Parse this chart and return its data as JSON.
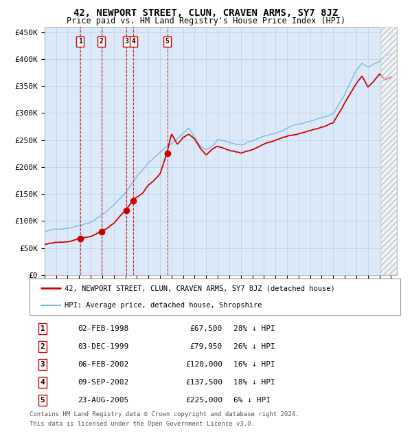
{
  "title": "42, NEWPORT STREET, CLUN, CRAVEN ARMS, SY7 8JZ",
  "subtitle": "Price paid vs. HM Land Registry's House Price Index (HPI)",
  "ylim": [
    0,
    460000
  ],
  "yticks": [
    0,
    50000,
    100000,
    150000,
    200000,
    250000,
    300000,
    350000,
    400000,
    450000
  ],
  "ytick_labels": [
    "£0",
    "£50K",
    "£100K",
    "£150K",
    "£200K",
    "£250K",
    "£300K",
    "£350K",
    "£400K",
    "£450K"
  ],
  "background_color": "#dce9f8",
  "hpi_color": "#7ab8e0",
  "price_color": "#cc0000",
  "vline_color": "#cc0000",
  "title_fontsize": 10,
  "subtitle_fontsize": 8.5,
  "legend_line1": "42, NEWPORT STREET, CLUN, CRAVEN ARMS, SY7 8JZ (detached house)",
  "legend_line2": "HPI: Average price, detached house, Shropshire",
  "sales": [
    {
      "num": 1,
      "date": "02-FEB-1998",
      "price": 67500,
      "year": 1998.09,
      "pct": "28%",
      "dir": "↓"
    },
    {
      "num": 2,
      "date": "03-DEC-1999",
      "price": 79950,
      "year": 1999.92,
      "pct": "26%",
      "dir": "↓"
    },
    {
      "num": 3,
      "date": "06-FEB-2002",
      "price": 120000,
      "year": 2002.1,
      "pct": "16%",
      "dir": "↓"
    },
    {
      "num": 4,
      "date": "09-SEP-2002",
      "price": 137500,
      "year": 2002.69,
      "pct": "18%",
      "dir": "↓"
    },
    {
      "num": 5,
      "date": "23-AUG-2005",
      "price": 225000,
      "year": 2005.64,
      "pct": "6%",
      "dir": "↓"
    }
  ],
  "footer1": "Contains HM Land Registry data © Crown copyright and database right 2024.",
  "footer2": "This data is licensed under the Open Government Licence v3.0.",
  "hpi_anchors_t": [
    1995.0,
    1996.0,
    1997.0,
    1998.0,
    1999.0,
    2000.0,
    2001.0,
    2002.0,
    2003.0,
    2004.0,
    2004.5,
    2005.5,
    2006.0,
    2007.0,
    2007.5,
    2008.0,
    2008.5,
    2009.0,
    2009.5,
    2010.0,
    2011.0,
    2012.0,
    2013.0,
    2014.0,
    2015.0,
    2016.0,
    2017.0,
    2018.0,
    2019.0,
    2020.0,
    2021.0,
    2022.0,
    2022.5,
    2023.0,
    2024.0,
    2024.5,
    2025.0
  ],
  "hpi_anchors_v": [
    80000,
    84000,
    88000,
    94000,
    102000,
    116000,
    133000,
    156000,
    187000,
    213000,
    222000,
    240000,
    248000,
    267000,
    278000,
    260000,
    243000,
    235000,
    242000,
    253000,
    248000,
    244000,
    248000,
    258000,
    263000,
    272000,
    281000,
    287000,
    293000,
    300000,
    335000,
    378000,
    390000,
    383000,
    395000,
    405000,
    410000
  ],
  "price_anchors_t": [
    1995.0,
    1997.0,
    1998.09,
    1999.0,
    1999.92,
    2001.0,
    2002.1,
    2002.69,
    2003.5,
    2004.0,
    2005.0,
    2005.64,
    2006.0,
    2006.5,
    2007.0,
    2007.5,
    2008.0,
    2008.5,
    2009.0,
    2009.5,
    2010.0,
    2011.0,
    2012.0,
    2013.0,
    2014.0,
    2015.0,
    2016.0,
    2017.0,
    2018.0,
    2019.0,
    2020.0,
    2021.0,
    2022.0,
    2022.5,
    2023.0,
    2023.5,
    2024.0,
    2024.5,
    2025.0
  ],
  "price_anchors_v": [
    57000,
    61000,
    67500,
    70000,
    79950,
    95000,
    120000,
    137500,
    148000,
    162000,
    183000,
    225000,
    258000,
    238000,
    252000,
    258000,
    248000,
    230000,
    218000,
    228000,
    235000,
    228000,
    222000,
    228000,
    238000,
    245000,
    252000,
    258000,
    263000,
    272000,
    282000,
    318000,
    355000,
    368000,
    348000,
    358000,
    372000,
    362000,
    368000
  ]
}
